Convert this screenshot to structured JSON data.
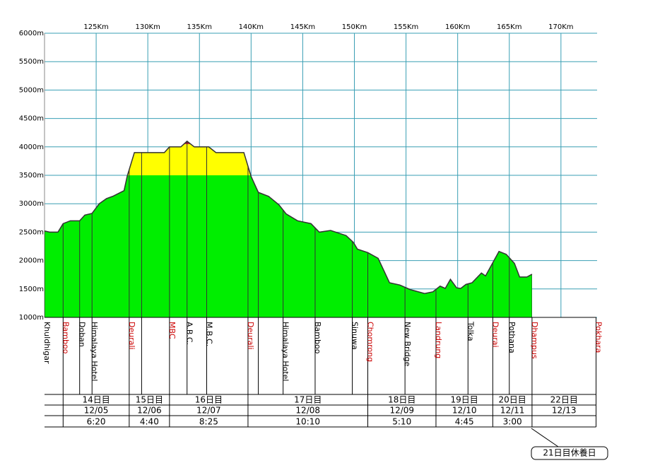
{
  "chart_data": {
    "type": "area",
    "xlim": [
      120,
      173.5
    ],
    "ylim": [
      1000,
      6000
    ],
    "xticks": [
      {
        "value": 125,
        "label": "125Km"
      },
      {
        "value": 130,
        "label": "130Km"
      },
      {
        "value": 135,
        "label": "135Km"
      },
      {
        "value": 140,
        "label": "140Km"
      },
      {
        "value": 145,
        "label": "145Km"
      },
      {
        "value": 150,
        "label": "150Km"
      },
      {
        "value": 155,
        "label": "155Km"
      },
      {
        "value": 160,
        "label": "160Km"
      },
      {
        "value": 165,
        "label": "165Km"
      },
      {
        "value": 170,
        "label": "170Km"
      }
    ],
    "yticks": [
      {
        "value": 1000,
        "label": "1000m"
      },
      {
        "value": 1500,
        "label": "1500m"
      },
      {
        "value": 2000,
        "label": "2000m"
      },
      {
        "value": 2500,
        "label": "2500m"
      },
      {
        "value": 3000,
        "label": "3000m"
      },
      {
        "value": 3500,
        "label": "3500m"
      },
      {
        "value": 4000,
        "label": "4000m"
      },
      {
        "value": 4500,
        "label": "4500m"
      },
      {
        "value": 5000,
        "label": "5000m"
      },
      {
        "value": 5500,
        "label": "5500m"
      },
      {
        "value": 6000,
        "label": "6000m"
      }
    ],
    "grid": true,
    "grid_color": "#3a9fb4",
    "line_color": "#333333",
    "zones": [
      {
        "above": 1000,
        "color": "#00ee00"
      },
      {
        "above": 3500,
        "color": "#ffff00"
      },
      {
        "above": 4050,
        "color": "#cc0022"
      }
    ],
    "x": [
      120,
      120.5,
      121.3,
      121.8,
      122.5,
      123.4,
      123.9,
      124.6,
      125.3,
      126,
      126.6,
      127.7,
      128,
      128.7,
      131.6,
      132.1,
      133.2,
      133.8,
      134.5,
      135.9,
      136.6,
      139.3,
      140,
      140.7,
      141.7,
      142.7,
      143.4,
      144.5,
      145.8,
      146.6,
      147.7,
      149.2,
      149.9,
      150.3,
      151.3,
      152.3,
      153.4,
      154.4,
      155.4,
      156.8,
      157.6,
      158.3,
      158.8,
      159.3,
      159.9,
      160.3,
      160.8,
      161.4,
      162.3,
      162.7,
      164,
      164.7,
      165.5,
      166,
      166.7,
      167.2
    ],
    "values": [
      2520,
      2500,
      2500,
      2650,
      2700,
      2700,
      2800,
      2830,
      3000,
      3090,
      3130,
      3230,
      3480,
      3900,
      3900,
      4000,
      4000,
      4100,
      4000,
      4000,
      3900,
      3900,
      3480,
      3200,
      3130,
      2980,
      2820,
      2700,
      2650,
      2500,
      2530,
      2440,
      2320,
      2200,
      2140,
      2040,
      1610,
      1570,
      1490,
      1420,
      1450,
      1550,
      1510,
      1670,
      1520,
      1510,
      1580,
      1610,
      1780,
      1730,
      2160,
      2110,
      1950,
      1710,
      1710,
      1760
    ]
  },
  "stops": {
    "names": [
      "Khuldhigar",
      "Bamboo",
      "Doban",
      "Himalaya Hotel",
      "Deurali",
      null,
      "MBC",
      "A.B.C.",
      "M.B.C.",
      "Deurali",
      null,
      "Himalaya Hotel",
      "Bamboo",
      "Sinuwa",
      "Chomrong",
      "New Bridge",
      "Landrung",
      "Tolka",
      "Deurai",
      "Pothana",
      "Dhampus",
      "Pokhara"
    ],
    "colors": [
      "#000",
      "#cc0000",
      "#000",
      "#000",
      "#cc0000",
      "#000",
      "#cc0000",
      "#000",
      "#000",
      "#cc0000",
      "#000",
      "#000",
      "#000",
      "#000",
      "#cc0000",
      "#000",
      "#cc0000",
      "#000",
      "#cc0000",
      "#000",
      "#cc0000",
      "#cc0000"
    ],
    "km": [
      120,
      121.8,
      123.4,
      124.6,
      128.2,
      129.4,
      132.1,
      133.8,
      135.7,
      139.7,
      140.7,
      143.1,
      146.2,
      149.8,
      151.3,
      154.9,
      157.9,
      161,
      163.4,
      165,
      167.2,
      173.4
    ]
  },
  "days": {
    "labels": [
      "14日目",
      "15日目",
      "16日目",
      "17日目",
      "18日目",
      "19日目",
      "20日目",
      "22日目"
    ],
    "dates": [
      "12/05",
      "12/06",
      "12/07",
      "12/08",
      "12/09",
      "12/10",
      "12/11",
      "12/13"
    ],
    "times": [
      "6:20",
      "4:40",
      "8:25",
      "10:10",
      "5:10",
      "4:45",
      "3:00",
      null
    ]
  },
  "note": "21日目休養日"
}
